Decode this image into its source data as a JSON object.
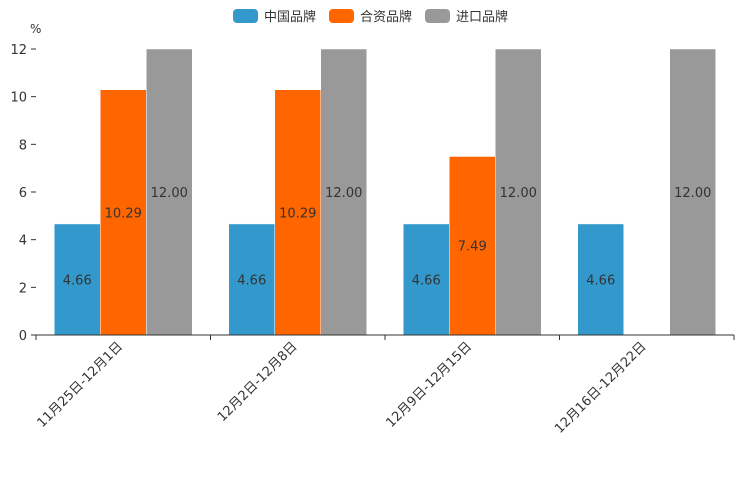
{
  "chart_data": {
    "type": "bar",
    "title": "",
    "xlabel": "",
    "ylabel": "%",
    "ylim": [
      0,
      12
    ],
    "yticks": [
      0,
      2,
      4,
      6,
      8,
      10,
      12
    ],
    "ytick_labels": [
      "0",
      "2",
      "4",
      "6",
      "8",
      "10",
      "12"
    ],
    "grid": false,
    "legend_position": "top-center",
    "categories": [
      "11月25日-12月1日",
      "12月2日-12月8日",
      "12月9日-12月15日",
      "12月16日-12月22日"
    ],
    "series": [
      {
        "name": "中国品牌",
        "color": "#3399cc",
        "values": [
          4.66,
          4.66,
          4.66,
          4.66
        ],
        "labels": [
          "4.66",
          "4.66",
          "4.66",
          "4.66"
        ]
      },
      {
        "name": "合资品牌",
        "color": "#ff6600",
        "values": [
          10.29,
          10.29,
          7.49,
          null
        ],
        "labels": [
          "10.29",
          "10.29",
          "7.49",
          ""
        ]
      },
      {
        "name": "进口品牌",
        "color": "#999999",
        "values": [
          12.0,
          12.0,
          12.0,
          12.0
        ],
        "labels": [
          "12.00",
          "12.00",
          "12.00",
          "12.00"
        ]
      }
    ]
  }
}
